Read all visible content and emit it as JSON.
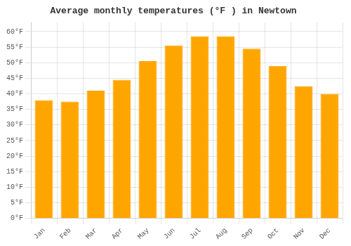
{
  "chart_data": {
    "type": "bar",
    "title": "Average monthly temperatures (°F ) in Newtown",
    "categories": [
      "Jan",
      "Feb",
      "Mar",
      "Apr",
      "May",
      "Jun",
      "Jul",
      "Aug",
      "Sep",
      "Oct",
      "Nov",
      "Dec"
    ],
    "values": [
      38,
      37.5,
      41,
      44.5,
      50.5,
      55.5,
      58.5,
      58.5,
      54.5,
      49,
      42.5,
      40
    ],
    "color": "#FFA500",
    "ylim": [
      0,
      63
    ],
    "yticks": [
      {
        "value": 0,
        "label": "0°F"
      },
      {
        "value": 5,
        "label": "5°F"
      },
      {
        "value": 10,
        "label": "10°F"
      },
      {
        "value": 15,
        "label": "15°F"
      },
      {
        "value": 20,
        "label": "20°F"
      },
      {
        "value": 25,
        "label": "25°F"
      },
      {
        "value": 30,
        "label": "30°F"
      },
      {
        "value": 35,
        "label": "35°F"
      },
      {
        "value": 40,
        "label": "40°F"
      },
      {
        "value": 45,
        "label": "45°F"
      },
      {
        "value": 50,
        "label": "50°F"
      },
      {
        "value": 55,
        "label": "55°F"
      },
      {
        "value": 60,
        "label": "60°F"
      }
    ],
    "grid": true
  }
}
